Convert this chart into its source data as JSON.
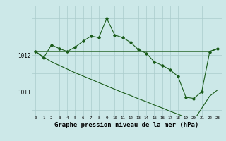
{
  "background_color": "#cce8e8",
  "grid_color": "#aacccc",
  "line_color": "#1a5c1a",
  "hours": [
    0,
    1,
    2,
    3,
    4,
    5,
    6,
    7,
    8,
    9,
    10,
    11,
    12,
    13,
    14,
    15,
    16,
    17,
    18,
    19,
    20,
    21,
    22,
    23
  ],
  "pressure_main": [
    1012.1,
    1011.92,
    1012.28,
    1012.18,
    1012.1,
    1012.22,
    1012.38,
    1012.52,
    1012.48,
    1013.0,
    1012.55,
    1012.48,
    1012.35,
    1012.15,
    1012.05,
    1011.82,
    1011.72,
    1011.6,
    1011.42,
    1010.85,
    1010.82,
    1011.0,
    1012.08,
    1012.18
  ],
  "pressure_flat": [
    1012.1,
    1012.1,
    1012.1,
    1012.1,
    1012.1,
    1012.1,
    1012.1,
    1012.1,
    1012.1,
    1012.1,
    1012.1,
    1012.1,
    1012.1,
    1012.1,
    1012.1,
    1012.1,
    1012.1,
    1012.1,
    1012.1,
    1012.1,
    1012.1,
    1012.1,
    1012.1,
    1012.18
  ],
  "pressure_trend": [
    1012.1,
    1011.95,
    1011.82,
    1011.72,
    1011.62,
    1011.52,
    1011.43,
    1011.34,
    1011.25,
    1011.16,
    1011.07,
    1010.98,
    1010.9,
    1010.81,
    1010.73,
    1010.64,
    1010.56,
    1010.47,
    1010.39,
    1010.3,
    1010.22,
    1010.55,
    1010.88,
    1011.05
  ],
  "yticks": [
    1011,
    1012
  ],
  "ylim": [
    1010.35,
    1013.35
  ],
  "xlabel": "Graphe pression niveau de la mer (hPa)"
}
